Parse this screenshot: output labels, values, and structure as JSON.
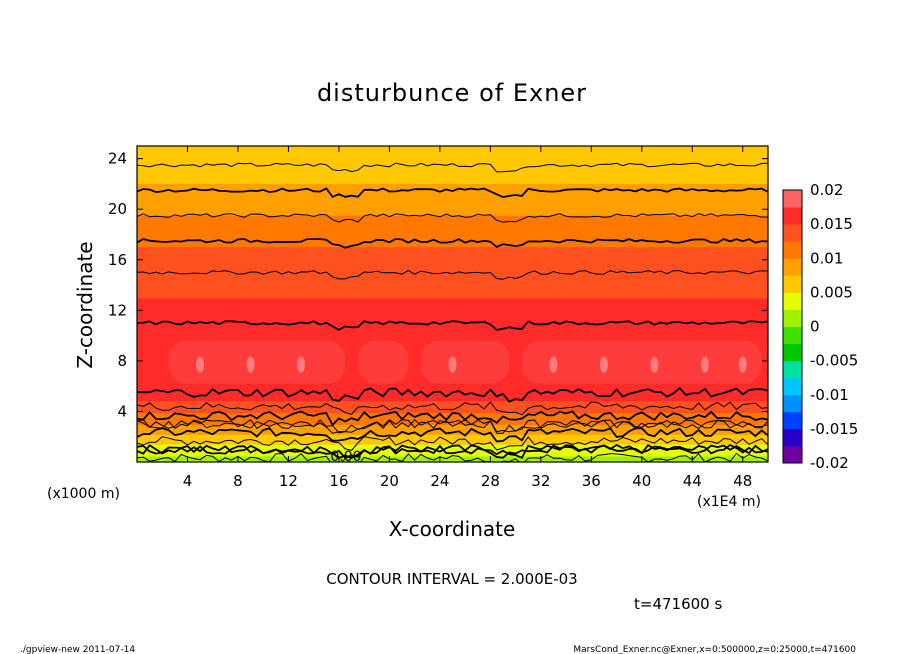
{
  "chart_data": {
    "type": "heatmap",
    "title": "disturbunce of Exner",
    "xlabel": "X-coordinate",
    "ylabel": "Z-coordinate",
    "x_unit": "(x1E4 m)",
    "y_unit": "(x1000 m)",
    "xlim": [
      0,
      50
    ],
    "ylim": [
      0,
      25
    ],
    "x_ticks": [
      4,
      8,
      12,
      16,
      20,
      24,
      28,
      32,
      36,
      40,
      44,
      48
    ],
    "y_ticks": [
      4,
      8,
      12,
      16,
      20,
      24
    ],
    "colorbar": {
      "range": [
        -0.02,
        0.02
      ],
      "tick_labels": [
        "0.02",
        "0.015",
        "0.01",
        "0.005",
        "0",
        "-0.005",
        "-0.01",
        "-0.015",
        "-0.02"
      ],
      "tick_values": [
        0.02,
        0.015,
        0.01,
        0.005,
        0,
        -0.005,
        -0.01,
        -0.015,
        -0.02
      ]
    },
    "contour_interval_text": "CONTOUR INTERVAL = 2.000E-03",
    "contour_label": "0.00",
    "time_label": "t=471600 s",
    "value_profile_vs_z": {
      "z": [
        0,
        1,
        2,
        3,
        4,
        5,
        6,
        7,
        8,
        9,
        10,
        12,
        14,
        16,
        18,
        20,
        22,
        23,
        24,
        25
      ],
      "value": [
        0.001,
        0.004,
        0.007,
        0.01,
        0.013,
        0.0155,
        0.0165,
        0.017,
        0.0172,
        0.017,
        0.0165,
        0.0155,
        0.0145,
        0.0135,
        0.0115,
        0.0095,
        0.0075,
        0.0065,
        0.0055,
        0.005
      ]
    }
  },
  "footer": {
    "left": "./gpview-new   2011-07-14",
    "right": "MarsCond_Exner.nc@Exner,x=0:500000,z=0:25000,t=471600"
  }
}
